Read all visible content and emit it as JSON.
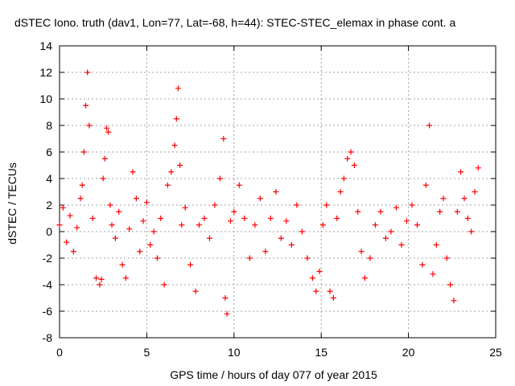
{
  "colors": {
    "series": "#ff0000",
    "grid": "#a0a0a0",
    "axis": "#000000",
    "background": "#ffffff"
  },
  "chart_data": {
    "type": "scatter",
    "title": "dSTEC Iono. truth (dav1, Lon=77, Lat=-68, h=44): STEC-STEC_elemax in phase cont. a",
    "xlabel": "GPS time / hours of day 077 of year 2015",
    "ylabel": "dSTEC  / TECUs",
    "xlim": [
      0,
      25
    ],
    "ylim": [
      -8,
      14
    ],
    "x_ticks": [
      0,
      5,
      10,
      15,
      20,
      25
    ],
    "y_ticks": [
      -8,
      -6,
      -4,
      -2,
      0,
      2,
      4,
      6,
      8,
      10,
      12,
      14
    ],
    "grid": true,
    "marker": "+",
    "series": [
      {
        "name": "dSTEC",
        "x": [
          0.0,
          0.2,
          0.4,
          0.6,
          0.8,
          1.0,
          1.2,
          1.3,
          1.4,
          1.5,
          1.6,
          1.7,
          1.9,
          2.1,
          2.3,
          2.4,
          2.5,
          2.6,
          2.7,
          2.8,
          2.9,
          3.0,
          3.2,
          3.4,
          3.6,
          3.8,
          4.0,
          4.2,
          4.4,
          4.6,
          4.8,
          5.0,
          5.2,
          5.4,
          5.6,
          5.8,
          6.0,
          6.2,
          6.4,
          6.6,
          6.7,
          6.8,
          6.9,
          7.0,
          7.2,
          7.5,
          7.8,
          8.0,
          8.3,
          8.6,
          8.9,
          9.2,
          9.4,
          9.5,
          9.6,
          9.8,
          10.0,
          10.3,
          10.6,
          10.9,
          11.2,
          11.5,
          11.8,
          12.1,
          12.4,
          12.7,
          13.0,
          13.3,
          13.6,
          13.9,
          14.2,
          14.5,
          14.7,
          14.9,
          15.1,
          15.3,
          15.5,
          15.7,
          15.9,
          16.1,
          16.3,
          16.5,
          16.7,
          16.9,
          17.1,
          17.3,
          17.5,
          17.8,
          18.1,
          18.4,
          18.7,
          19.0,
          19.3,
          19.6,
          19.9,
          20.2,
          20.5,
          20.8,
          21.0,
          21.2,
          21.4,
          21.6,
          21.8,
          22.0,
          22.2,
          22.4,
          22.6,
          22.8,
          23.0,
          23.2,
          23.4,
          23.6,
          23.8,
          24.0
        ],
        "y": [
          0.5,
          1.8,
          -0.8,
          1.2,
          -1.5,
          0.3,
          2.5,
          3.5,
          6.0,
          9.5,
          12.0,
          8.0,
          1.0,
          -3.5,
          -4.0,
          -3.6,
          4.0,
          5.5,
          7.8,
          7.5,
          2.0,
          0.5,
          -0.5,
          1.5,
          -2.5,
          -3.5,
          0.2,
          4.5,
          2.5,
          -1.5,
          0.8,
          2.2,
          -1.0,
          0.0,
          -2.0,
          1.0,
          -4.0,
          3.5,
          4.5,
          6.5,
          8.5,
          10.8,
          5.0,
          0.5,
          1.8,
          -2.5,
          -4.5,
          0.5,
          1.0,
          -0.5,
          2.0,
          4.0,
          7.0,
          -5.0,
          -6.2,
          0.8,
          1.5,
          3.5,
          1.0,
          -2.0,
          0.5,
          2.5,
          -1.5,
          1.0,
          3.0,
          -0.5,
          0.8,
          -1.0,
          2.0,
          0.0,
          -2.0,
          -3.5,
          -4.5,
          -3.0,
          0.5,
          2.0,
          -4.5,
          -5.0,
          1.0,
          3.0,
          4.0,
          5.5,
          6.0,
          5.0,
          1.5,
          -1.5,
          -3.5,
          -2.0,
          0.5,
          1.5,
          -0.5,
          0.0,
          1.8,
          -1.0,
          0.8,
          2.0,
          0.5,
          -2.5,
          3.5,
          8.0,
          -3.2,
          -1.0,
          1.5,
          2.5,
          -2.0,
          -4.0,
          -5.2,
          1.5,
          4.5,
          2.5,
          1.0,
          0.0,
          3.0,
          4.8
        ]
      }
    ]
  }
}
